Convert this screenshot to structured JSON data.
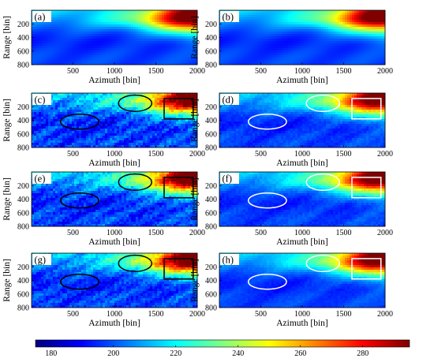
{
  "chart_data": {
    "type": "heatmap",
    "colormap": "jet",
    "colorbar": {
      "range": [
        175,
        295
      ],
      "ticks": [
        "180",
        "200",
        "220",
        "240",
        "260",
        "280"
      ],
      "tick_values": [
        180,
        200,
        220,
        240,
        260,
        280
      ]
    },
    "xaxis": {
      "label": "Azimuth [bin]",
      "range": [
        0,
        2000
      ],
      "ticks": [
        "500",
        "1000",
        "1500",
        "2000"
      ],
      "tick_values": [
        500,
        1000,
        1500,
        2000
      ]
    },
    "yaxis": {
      "label": "Range [bin]",
      "range": [
        0,
        800
      ],
      "reversed": true,
      "ticks_a": [
        "200",
        "400",
        "600",
        "800"
      ],
      "tick_values_a": [
        200,
        400,
        600,
        800
      ],
      "ticks_c": [
        "200",
        "400",
        "600",
        "800"
      ],
      "tick_values_c": [
        200,
        400,
        600,
        800
      ]
    },
    "panels": [
      {
        "label": "(a)",
        "speckle": 0,
        "marker_color": "none"
      },
      {
        "label": "(b)",
        "speckle": 0,
        "marker_color": "none"
      },
      {
        "label": "(c)",
        "speckle": 1.0,
        "marker_color": "#000000"
      },
      {
        "label": "(d)",
        "speckle": 0.35,
        "marker_color": "#ffffff"
      },
      {
        "label": "(e)",
        "speckle": 0.9,
        "marker_color": "#000000"
      },
      {
        "label": "(f)",
        "speckle": 0.3,
        "marker_color": "#ffffff"
      },
      {
        "label": "(g)",
        "speckle": 0.8,
        "marker_color": "#000000"
      },
      {
        "label": "(h)",
        "speckle": 0.2,
        "marker_color": "#ffffff"
      }
    ],
    "markers": {
      "ellipses": [
        {
          "cx": 580,
          "cy": 420,
          "rx": 230,
          "ry": 110
        },
        {
          "cx": 1250,
          "cy": 150,
          "rx": 200,
          "ry": 120
        }
      ],
      "rectangle": {
        "x0": 1600,
        "x1": 1950,
        "y0": 80,
        "y1": 380
      }
    },
    "field": {
      "base_value": 197,
      "top_boost": 18,
      "right_peak": 88,
      "right_center": 2000,
      "right_width": 520,
      "band_center": 80,
      "band_width": 260
    }
  }
}
